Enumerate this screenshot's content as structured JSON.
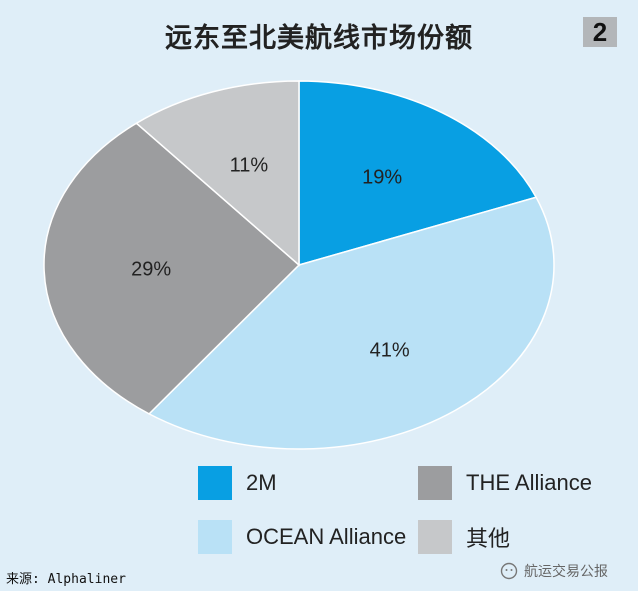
{
  "header": {
    "title": "远东至北美航线市场份额",
    "badge": "2"
  },
  "chart_data": {
    "type": "pie",
    "title": "远东至北美航线市场份额",
    "slices": [
      {
        "label": "2M",
        "value": 19,
        "display": "19%",
        "color": "#089fe3"
      },
      {
        "label": "OCEAN Alliance",
        "value": 41,
        "display": "41%",
        "color": "#b9e1f6"
      },
      {
        "label": "THE Alliance",
        "value": 29,
        "display": "29%",
        "color": "#9c9d9f"
      },
      {
        "label": "其他",
        "value": 11,
        "display": "11%",
        "color": "#c6c8ca"
      }
    ],
    "legend_position": "bottom"
  },
  "legend": [
    {
      "label": "2M",
      "color": "#089fe3"
    },
    {
      "label": "THE Alliance",
      "color": "#9c9d9f"
    },
    {
      "label": "OCEAN Alliance",
      "color": "#b9e1f6"
    },
    {
      "label": "其他",
      "color": "#c6c8ca"
    }
  ],
  "footer": {
    "source": "来源: Alphaliner",
    "watermark": "航运交易公报"
  }
}
